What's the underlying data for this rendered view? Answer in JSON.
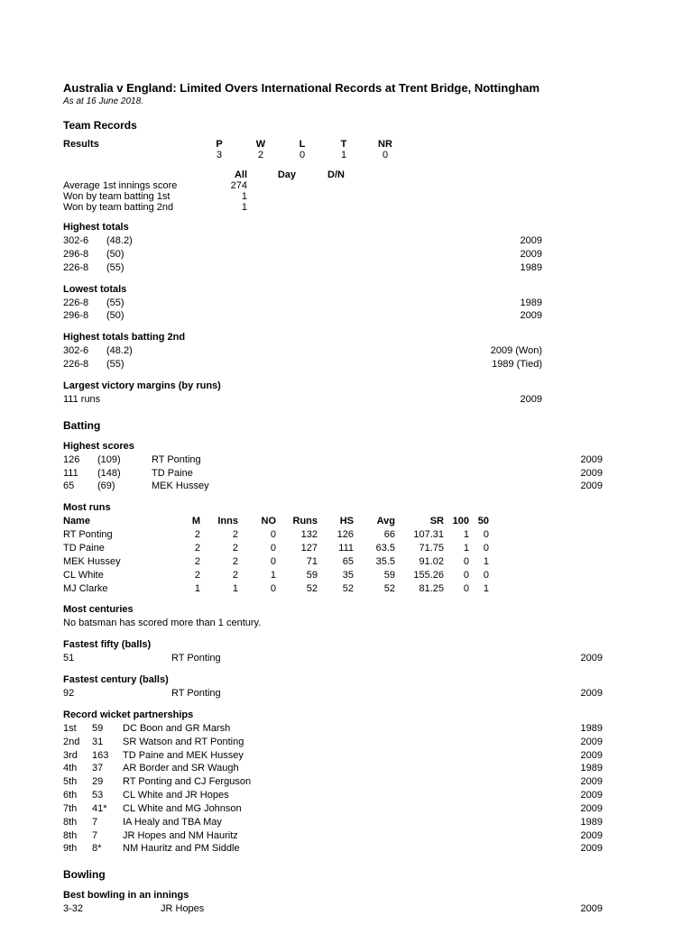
{
  "title": "Australia v England: Limited Overs International Records at Trent Bridge, Nottingham",
  "as_at": "As at 16 June 2018.",
  "sections": {
    "team_records": "Team Records",
    "batting": "Batting",
    "bowling": "Bowling"
  },
  "results": {
    "heading": "Results",
    "cols": {
      "p": "P",
      "w": "W",
      "l": "L",
      "t": "T",
      "nr": "NR"
    },
    "vals": {
      "p": "3",
      "w": "2",
      "l": "0",
      "t": "1",
      "nr": "0"
    }
  },
  "innings_summary": {
    "cols": {
      "all": "All",
      "day": "Day",
      "dn": "D/N"
    },
    "rows": [
      {
        "label": "Average 1st innings score",
        "all": "274",
        "day": "",
        "dn": ""
      },
      {
        "label": "Won by team batting 1st",
        "all": "1",
        "day": "",
        "dn": ""
      },
      {
        "label": "Won by team batting 2nd",
        "all": "1",
        "day": "",
        "dn": ""
      }
    ]
  },
  "highest_totals": {
    "heading": "Highest totals",
    "rows": [
      {
        "score": "302-6",
        "overs": "(48.2)",
        "year": "2009"
      },
      {
        "score": "296-8",
        "overs": "(50)",
        "year": "2009"
      },
      {
        "score": "226-8",
        "overs": "(55)",
        "year": "1989"
      }
    ]
  },
  "lowest_totals": {
    "heading": "Lowest totals",
    "rows": [
      {
        "score": "226-8",
        "overs": "(55)",
        "year": "1989"
      },
      {
        "score": "296-8",
        "overs": "(50)",
        "year": "2009"
      }
    ]
  },
  "highest_totals_2nd": {
    "heading": "Highest totals batting 2nd",
    "rows": [
      {
        "score": "302-6",
        "overs": "(48.2)",
        "year": "2009 (Won)"
      },
      {
        "score": "226-8",
        "overs": "(55)",
        "year": "1989 (Tied)"
      }
    ]
  },
  "largest_victory": {
    "heading": "Largest victory margins (by runs)",
    "rows": [
      {
        "margin": "111 runs",
        "year": "2009"
      }
    ]
  },
  "highest_scores": {
    "heading": "Highest scores",
    "rows": [
      {
        "runs": "126",
        "balls": "(109)",
        "name": "RT Ponting",
        "year": "2009"
      },
      {
        "runs": "111",
        "balls": "(148)",
        "name": "TD Paine",
        "year": "2009"
      },
      {
        "runs": "65",
        "balls": "(69)",
        "name": "MEK Hussey",
        "year": "2009"
      }
    ]
  },
  "most_runs": {
    "heading": "Most runs",
    "cols": {
      "name": "Name",
      "m": "M",
      "inns": "Inns",
      "no": "NO",
      "runs": "Runs",
      "hs": "HS",
      "avg": "Avg",
      "sr": "SR",
      "c100": "100",
      "c50": "50"
    },
    "rows": [
      {
        "name": "RT Ponting",
        "m": "2",
        "inns": "2",
        "no": "0",
        "runs": "132",
        "hs": "126",
        "avg": "66",
        "sr": "107.31",
        "c100": "1",
        "c50": "0"
      },
      {
        "name": "TD Paine",
        "m": "2",
        "inns": "2",
        "no": "0",
        "runs": "127",
        "hs": "111",
        "avg": "63.5",
        "sr": "71.75",
        "c100": "1",
        "c50": "0"
      },
      {
        "name": "MEK Hussey",
        "m": "2",
        "inns": "2",
        "no": "0",
        "runs": "71",
        "hs": "65",
        "avg": "35.5",
        "sr": "91.02",
        "c100": "0",
        "c50": "1"
      },
      {
        "name": "CL White",
        "m": "2",
        "inns": "2",
        "no": "1",
        "runs": "59",
        "hs": "35",
        "avg": "59",
        "sr": "155.26",
        "c100": "0",
        "c50": "0"
      },
      {
        "name": "MJ Clarke",
        "m": "1",
        "inns": "1",
        "no": "0",
        "runs": "52",
        "hs": "52",
        "avg": "52",
        "sr": "81.25",
        "c100": "0",
        "c50": "1"
      }
    ]
  },
  "most_centuries": {
    "heading": "Most centuries",
    "note": "No batsman has scored more than 1 century."
  },
  "fastest_fifty": {
    "heading": "Fastest fifty (balls)",
    "rows": [
      {
        "balls": "51",
        "name": "RT Ponting",
        "year": "2009"
      }
    ]
  },
  "fastest_century": {
    "heading": "Fastest century (balls)",
    "rows": [
      {
        "balls": "92",
        "name": "RT Ponting",
        "year": "2009"
      }
    ]
  },
  "partnerships": {
    "heading": "Record wicket partnerships",
    "rows": [
      {
        "wkt": "1st",
        "runs": "59",
        "names": "DC Boon and GR Marsh",
        "year": "1989"
      },
      {
        "wkt": "2nd",
        "runs": "31",
        "names": "SR Watson and RT Ponting",
        "year": "2009"
      },
      {
        "wkt": "3rd",
        "runs": "163",
        "names": "TD Paine and MEK Hussey",
        "year": "2009"
      },
      {
        "wkt": "4th",
        "runs": "37",
        "names": "AR Border and SR Waugh",
        "year": "1989"
      },
      {
        "wkt": "5th",
        "runs": "29",
        "names": "RT Ponting and CJ Ferguson",
        "year": "2009"
      },
      {
        "wkt": "6th",
        "runs": "53",
        "names": "CL White and JR Hopes",
        "year": "2009"
      },
      {
        "wkt": "7th",
        "runs": "41*",
        "names": "CL White and MG Johnson",
        "year": "2009"
      },
      {
        "wkt": "8th",
        "runs": "7",
        "names": "IA Healy and TBA May",
        "year": "1989"
      },
      {
        "wkt": "8th",
        "runs": "7",
        "names": "JR Hopes and NM Hauritz",
        "year": "2009"
      },
      {
        "wkt": "9th",
        "runs": "8*",
        "names": "NM Hauritz and PM Siddle",
        "year": "2009"
      }
    ]
  },
  "best_bowling": {
    "heading": "Best bowling in an innings",
    "rows": [
      {
        "fig": "3-32",
        "name": "JR Hopes",
        "year": "2009"
      }
    ]
  }
}
